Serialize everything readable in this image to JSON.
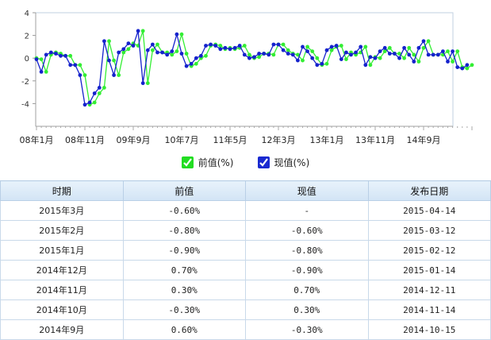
{
  "chart_data": {
    "type": "line",
    "title": "",
    "xlabel": "",
    "ylabel": "",
    "ylim": [
      -6,
      4
    ],
    "yticks": [
      4,
      2,
      0,
      -2,
      -4
    ],
    "xtick_labels": [
      "08年1月",
      "08年11月",
      "09年9月",
      "10年7月",
      "11年5月",
      "12年3月",
      "13年1月",
      "13年11月",
      "14年9月"
    ],
    "grid": false,
    "legend": "bottom-center",
    "series": [
      {
        "name": "前值(%)",
        "color": "#33ee33",
        "values": [
          0.0,
          -0.1,
          -1.2,
          0.3,
          0.5,
          0.4,
          0.2,
          0.2,
          -0.6,
          -0.6,
          -1.5,
          -4.1,
          -3.9,
          -3.1,
          -2.6,
          1.5,
          -0.2,
          -1.5,
          0.5,
          0.8,
          1.3,
          1.1,
          2.4,
          -2.2,
          0.7,
          1.2,
          0.5,
          0.5,
          0.3,
          0.6,
          2.1,
          0.4,
          -0.7,
          -0.5,
          0.0,
          0.2,
          1.1,
          1.2,
          1.1,
          0.8,
          0.9,
          0.8,
          0.9,
          1.1,
          0.3,
          0.0,
          0.1,
          0.4,
          0.4,
          0.3,
          1.2,
          1.2,
          0.7,
          0.4,
          0.3,
          -0.2,
          1.0,
          0.6,
          0.0,
          -0.6,
          -0.5,
          0.7,
          1.0,
          1.1,
          -0.1,
          0.5,
          0.3,
          0.5,
          1.0,
          -0.6,
          0.1,
          0.0,
          0.6,
          0.9,
          0.4,
          0.4,
          0.0,
          0.9,
          0.3,
          -0.3,
          0.9,
          1.5,
          0.3,
          0.3,
          0.3,
          0.6,
          -0.3,
          0.6,
          -0.8,
          -0.9,
          -0.6
        ]
      },
      {
        "name": "现值(%)",
        "color": "#1522cc",
        "values": [
          -0.1,
          -1.2,
          0.3,
          0.5,
          0.4,
          0.2,
          0.2,
          -0.6,
          -0.6,
          -1.5,
          -4.1,
          -3.9,
          -3.1,
          -2.6,
          1.5,
          -0.2,
          -1.5,
          0.5,
          0.8,
          1.3,
          1.1,
          2.4,
          -2.2,
          0.7,
          1.2,
          0.5,
          0.5,
          0.3,
          0.6,
          2.1,
          0.4,
          -0.7,
          -0.5,
          0.0,
          0.2,
          1.1,
          1.2,
          1.1,
          0.8,
          0.9,
          0.8,
          0.9,
          1.1,
          0.3,
          0.0,
          0.1,
          0.4,
          0.4,
          0.3,
          1.2,
          1.2,
          0.7,
          0.4,
          0.3,
          -0.2,
          1.0,
          0.6,
          0.0,
          -0.6,
          -0.5,
          0.7,
          1.0,
          1.1,
          -0.1,
          0.5,
          0.3,
          0.5,
          1.0,
          -0.6,
          0.1,
          0.0,
          0.6,
          0.9,
          0.4,
          0.4,
          0.0,
          0.9,
          0.3,
          -0.3,
          0.9,
          1.5,
          0.3,
          0.3,
          0.3,
          0.6,
          -0.3,
          0.6,
          -0.8,
          -0.9,
          -0.6
        ]
      }
    ]
  },
  "legend_items": [
    {
      "label": "前值(%)",
      "color": "#2ee82e"
    },
    {
      "label": "现值(%)",
      "color": "#1a2ad0"
    }
  ],
  "table": {
    "headers": [
      "时期",
      "前值",
      "现值",
      "发布日期"
    ],
    "rows": [
      [
        "2015年3月",
        "-0.60%",
        "-",
        "2015-04-14"
      ],
      [
        "2015年2月",
        "-0.80%",
        "-0.60%",
        "2015-03-12"
      ],
      [
        "2015年1月",
        "-0.90%",
        "-0.80%",
        "2015-02-12"
      ],
      [
        "2014年12月",
        "0.70%",
        "-0.90%",
        "2015-01-14"
      ],
      [
        "2014年11月",
        "0.30%",
        "0.70%",
        "2014-12-11"
      ],
      [
        "2014年10月",
        "-0.30%",
        "0.30%",
        "2014-11-14"
      ],
      [
        "2014年9月",
        "0.60%",
        "-0.30%",
        "2014-10-15"
      ]
    ]
  }
}
